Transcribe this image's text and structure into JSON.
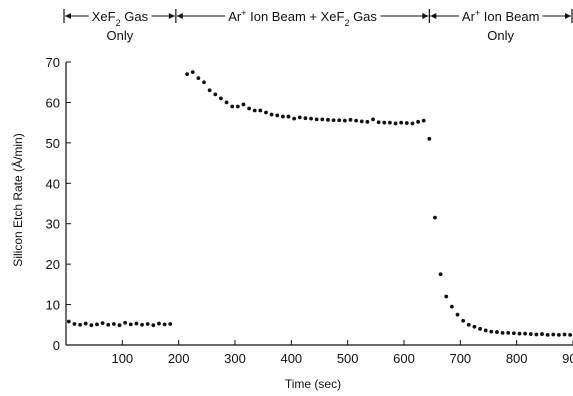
{
  "chart_data": {
    "type": "scatter",
    "xlabel": "Time (sec)",
    "ylabel": "Silicon Etch Rate (Å/min)",
    "xlim": [
      0,
      900
    ],
    "ylim": [
      0,
      70
    ],
    "x_ticks": [
      100,
      200,
      300,
      400,
      500,
      600,
      700,
      800,
      900
    ],
    "y_ticks": [
      0,
      10,
      20,
      30,
      40,
      50,
      60,
      70
    ],
    "grid": false,
    "regions": [
      {
        "line1_parts": [
          "XeF",
          "2",
          " Gas"
        ],
        "line2": "Only",
        "x_range": [
          0,
          195
        ]
      },
      {
        "line1_parts": [
          "Ar",
          "+",
          " Ion Beam + XeF",
          "2",
          " Gas"
        ],
        "line2": "",
        "x_range": [
          195,
          645
        ]
      },
      {
        "line1_parts": [
          "Ar",
          "+",
          " Ion Beam"
        ],
        "line2": "Only",
        "x_range": [
          645,
          900
        ]
      }
    ],
    "series": [
      {
        "x": [
          5,
          15,
          25,
          35,
          45,
          55,
          65,
          75,
          85,
          95,
          105,
          115,
          125,
          135,
          145,
          155,
          165,
          175,
          185,
          215,
          225,
          235,
          245,
          255,
          265,
          275,
          285,
          295,
          305,
          315,
          325,
          335,
          345,
          355,
          365,
          375,
          385,
          395,
          405,
          415,
          425,
          435,
          445,
          455,
          465,
          475,
          485,
          495,
          505,
          515,
          525,
          535,
          545,
          555,
          565,
          575,
          585,
          595,
          605,
          615,
          625,
          635,
          645,
          655,
          665,
          675,
          685,
          695,
          705,
          715,
          725,
          735,
          745,
          755,
          765,
          775,
          785,
          795,
          805,
          815,
          825,
          835,
          845,
          855,
          865,
          875,
          885,
          895
        ],
        "y": [
          5.8,
          5.2,
          5.0,
          5.3,
          4.9,
          5.1,
          5.4,
          5.0,
          5.2,
          4.9,
          5.5,
          5.1,
          5.3,
          5.0,
          5.2,
          4.9,
          5.3,
          5.1,
          5.2,
          67,
          67.5,
          66,
          65,
          63,
          62,
          61,
          60,
          59,
          59,
          59.5,
          58.5,
          58,
          58,
          57.5,
          57,
          56.8,
          56.5,
          56.5,
          56,
          56.3,
          56.1,
          56,
          55.8,
          55.8,
          55.7,
          55.6,
          55.6,
          55.5,
          55.7,
          55.5,
          55.3,
          55.2,
          55.8,
          55.1,
          55,
          55,
          54.8,
          55,
          54.9,
          54.8,
          55.2,
          55.5,
          51,
          31.5,
          17.5,
          12,
          9.5,
          7.5,
          6,
          5,
          4.5,
          4,
          3.6,
          3.3,
          3.2,
          3.0,
          3.0,
          2.9,
          2.8,
          2.8,
          2.7,
          2.6,
          2.7,
          2.5,
          2.6,
          2.5,
          2.6,
          2.5
        ]
      }
    ]
  }
}
